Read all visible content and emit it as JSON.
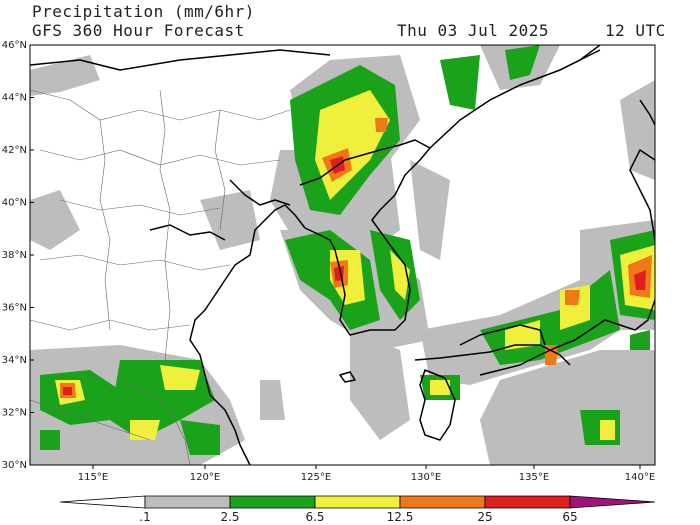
{
  "header": {
    "title": "Precipitation (mm/6hr)",
    "subtitle": "GFS 360 Hour Forecast",
    "date": "Thu 03 Jul 2025",
    "time": "12 UTC"
  },
  "map": {
    "lat_labels": [
      "46°N",
      "44°N",
      "42°N",
      "40°N",
      "38°N",
      "36°N",
      "34°N",
      "32°N",
      "30°N"
    ],
    "lon_labels": [
      "115°E",
      "120°E",
      "125°E",
      "130°E",
      "135°E",
      "140°E"
    ]
  },
  "legend": {
    "labels": [
      ".1",
      "2.5",
      "6.5",
      "12.5",
      "25",
      "65"
    ],
    "colors": [
      "#ffffff",
      "#bdbdbd",
      "#1aa21a",
      "#f0f03c",
      "#f07818",
      "#e01e1e",
      "#a0147a"
    ]
  }
}
